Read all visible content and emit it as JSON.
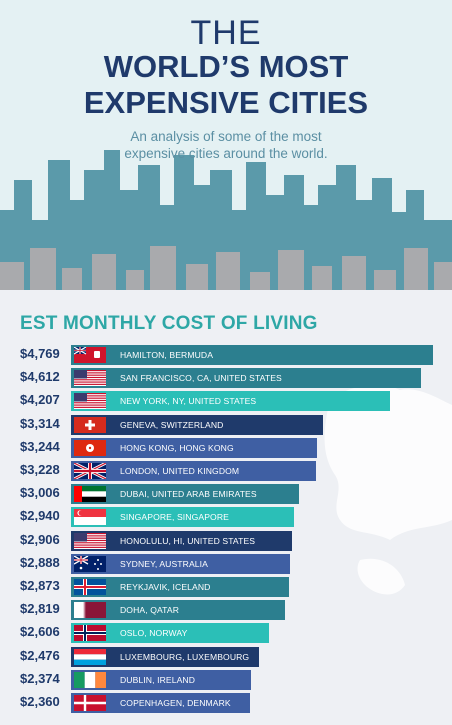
{
  "header": {
    "title_line1": "THE",
    "title_line2": "WORLD’S MOST",
    "title_line3": "EXPENSIVE CITIES",
    "subtitle_line1": "An analysis of some of the most",
    "subtitle_line2": "expensive cities around the world."
  },
  "section_title": "EST MONTHLY COST OF LIVING",
  "chart_data": {
    "type": "bar",
    "title": "EST MONTHLY COST OF LIVING",
    "orientation": "horizontal",
    "categories": [
      "HAMILTON, BERMUDA",
      "SAN FRANCISCO, CA, UNITED STATES",
      "NEW YORK, NY, UNITED STATES",
      "GENEVA, SWITZERLAND",
      "HONG KONG, HONG KONG",
      "LONDON, UNITED KINGDOM",
      "DUBAI, UNITED ARAB EMIRATES",
      "SINGAPORE, SINGAPORE",
      "HONOLULU, HI, UNITED STATES",
      "SYDNEY, AUSTRALIA",
      "REYKJAVIK, ICELAND",
      "DOHA, QATAR",
      "OSLO, NORWAY",
      "LUXEMBOURG, LUXEMBOURG",
      "DUBLIN, IRELAND",
      "COPENHAGEN, DENMARK"
    ],
    "values": [
      4769,
      4612,
      4207,
      3314,
      3244,
      3228,
      3006,
      2940,
      2906,
      2888,
      2873,
      2819,
      2606,
      2476,
      2374,
      2360
    ],
    "value_labels": [
      "$4,769",
      "$4,612",
      "$4,207",
      "$3,314",
      "$3,244",
      "$3,228",
      "$3,006",
      "$2,940",
      "$2,906",
      "$2,888",
      "$2,873",
      "$2,819",
      "$2,606",
      "$2,476",
      "$2,374",
      "$2,360"
    ],
    "flags": [
      "bermuda",
      "usa",
      "usa",
      "switzerland",
      "hong-kong",
      "uk",
      "uae",
      "singapore",
      "usa",
      "australia",
      "iceland",
      "qatar",
      "norway",
      "luxembourg",
      "ireland",
      "denmark"
    ],
    "bar_colors": [
      "#2c7f8f",
      "#2c7f8f",
      "#2bbfb7",
      "#1f3a6b",
      "#3f5fa3",
      "#3f5fa3",
      "#2c7f8f",
      "#2bbfb7",
      "#1f3a6b",
      "#3f5fa3",
      "#2c7f8f",
      "#2c7f8f",
      "#2bbfb7",
      "#1f3a6b",
      "#3f5fa3",
      "#3f5fa3"
    ]
  },
  "colors": {
    "navy": "#1f3a6b",
    "teal": "#2ea7a6",
    "dark_teal": "#2c7f8f",
    "light_teal": "#2bbfb7",
    "royal_blue": "#3f5fa3",
    "sky_bg": "#e4f1f3",
    "building_teal": "#5b9aaa",
    "building_gray": "#a9aaad"
  }
}
